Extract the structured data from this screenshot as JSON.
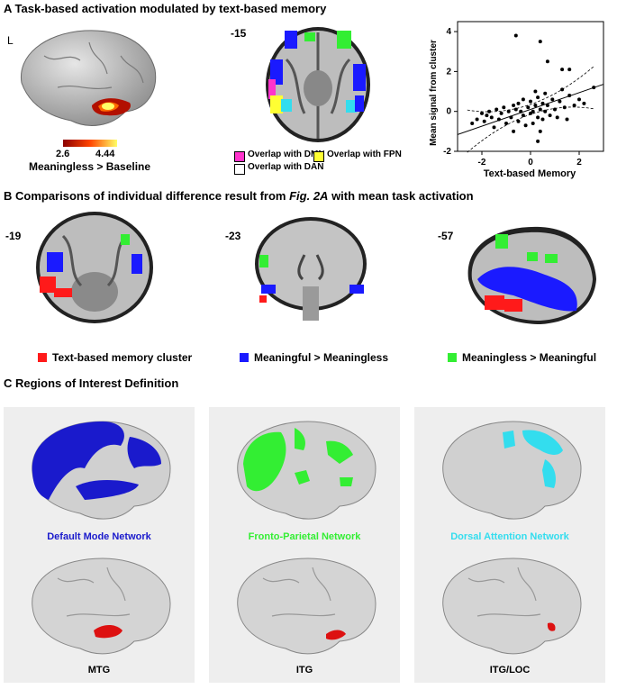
{
  "sectionA": {
    "title": "A Task-based activation modulated by text-based memory",
    "hemisphere_label": "L",
    "colorbar": {
      "min": "2.6",
      "max": "4.44",
      "caption": "Meaningless > Baseline"
    },
    "slice_label": "-15",
    "overlap_legend": [
      {
        "label": "Overlap with DMN",
        "color": "#ff33cc"
      },
      {
        "label": "Overlap with FPN",
        "color": "#ffff33"
      },
      {
        "label": "Overlap with DAN",
        "color": "#ffffff"
      }
    ]
  },
  "chart_data": {
    "type": "scatter",
    "xlabel": "Text-based Memory",
    "ylabel": "Mean signal from cluster",
    "xlim": [
      -3,
      3
    ],
    "ylim": [
      -2,
      4.5
    ],
    "xticks": [
      "-2",
      "0",
      "2"
    ],
    "yticks": [
      "-2",
      "0",
      "2",
      "4"
    ],
    "fit_line": {
      "slope": 0.42,
      "intercept": 0.1
    },
    "points": [
      [
        -2.4,
        -0.6
      ],
      [
        -2.2,
        -0.4
      ],
      [
        -2.0,
        -0.1
      ],
      [
        -1.9,
        -0.5
      ],
      [
        -1.8,
        -0.2
      ],
      [
        -1.7,
        0.0
      ],
      [
        -1.6,
        -0.3
      ],
      [
        -1.5,
        -0.8
      ],
      [
        -1.4,
        0.1
      ],
      [
        -1.3,
        -0.4
      ],
      [
        -1.2,
        -0.1
      ],
      [
        -1.1,
        0.2
      ],
      [
        -1.0,
        -0.6
      ],
      [
        -0.9,
        0.0
      ],
      [
        -0.8,
        -0.3
      ],
      [
        -0.7,
        0.3
      ],
      [
        -0.7,
        -1.0
      ],
      [
        -0.6,
        0.1
      ],
      [
        -0.5,
        -0.5
      ],
      [
        -0.5,
        0.4
      ],
      [
        -0.4,
        0.0
      ],
      [
        -0.3,
        -0.2
      ],
      [
        -0.3,
        0.6
      ],
      [
        -0.2,
        -0.7
      ],
      [
        -0.1,
        0.2
      ],
      [
        0.0,
        -0.1
      ],
      [
        0.0,
        0.5
      ],
      [
        0.1,
        0.0
      ],
      [
        0.1,
        -0.6
      ],
      [
        0.2,
        0.3
      ],
      [
        0.2,
        1.0
      ],
      [
        0.3,
        -0.3
      ],
      [
        0.3,
        0.7
      ],
      [
        0.4,
        0.1
      ],
      [
        0.4,
        -1.0
      ],
      [
        0.5,
        0.4
      ],
      [
        0.5,
        -0.4
      ],
      [
        0.6,
        0.9
      ],
      [
        0.6,
        0.0
      ],
      [
        0.7,
        0.3
      ],
      [
        0.8,
        -0.2
      ],
      [
        0.9,
        0.6
      ],
      [
        1.0,
        0.1
      ],
      [
        1.1,
        -0.3
      ],
      [
        1.2,
        0.5
      ],
      [
        1.3,
        1.1
      ],
      [
        1.4,
        0.2
      ],
      [
        1.5,
        -0.4
      ],
      [
        1.6,
        0.8
      ],
      [
        1.8,
        0.3
      ],
      [
        2.0,
        0.6
      ],
      [
        2.2,
        0.4
      ],
      [
        2.6,
        1.2
      ],
      [
        -0.6,
        3.8
      ],
      [
        0.4,
        3.5
      ],
      [
        0.7,
        2.5
      ],
      [
        1.3,
        2.1
      ],
      [
        1.6,
        2.1
      ],
      [
        0.3,
        -1.5
      ]
    ]
  },
  "sectionB": {
    "title_prefix": "B Comparisons of individual difference result from ",
    "title_italic": "Fig. 2A",
    "title_suffix": " with mean task activation",
    "slices": [
      "-19",
      "-23",
      "-57"
    ],
    "legend": [
      {
        "label": "Text-based memory cluster",
        "color": "#ff1a1a"
      },
      {
        "label": "Meaningful > Meaningless",
        "color": "#1a1aff"
      },
      {
        "label": "Meaningless > Meaningful",
        "color": "#33ee33"
      }
    ]
  },
  "sectionC": {
    "title": "C Regions of Interest Definition",
    "networks": [
      {
        "label": "Default Mode Network",
        "color": "#1a1acc"
      },
      {
        "label": "Fronto-Parietal Network",
        "color": "#33ee33"
      },
      {
        "label": "Dorsal Attention Network",
        "color": "#33ddee"
      }
    ],
    "rois": [
      "MTG",
      "ITG",
      "ITG/LOC"
    ],
    "roi_color": "#dd1111"
  }
}
